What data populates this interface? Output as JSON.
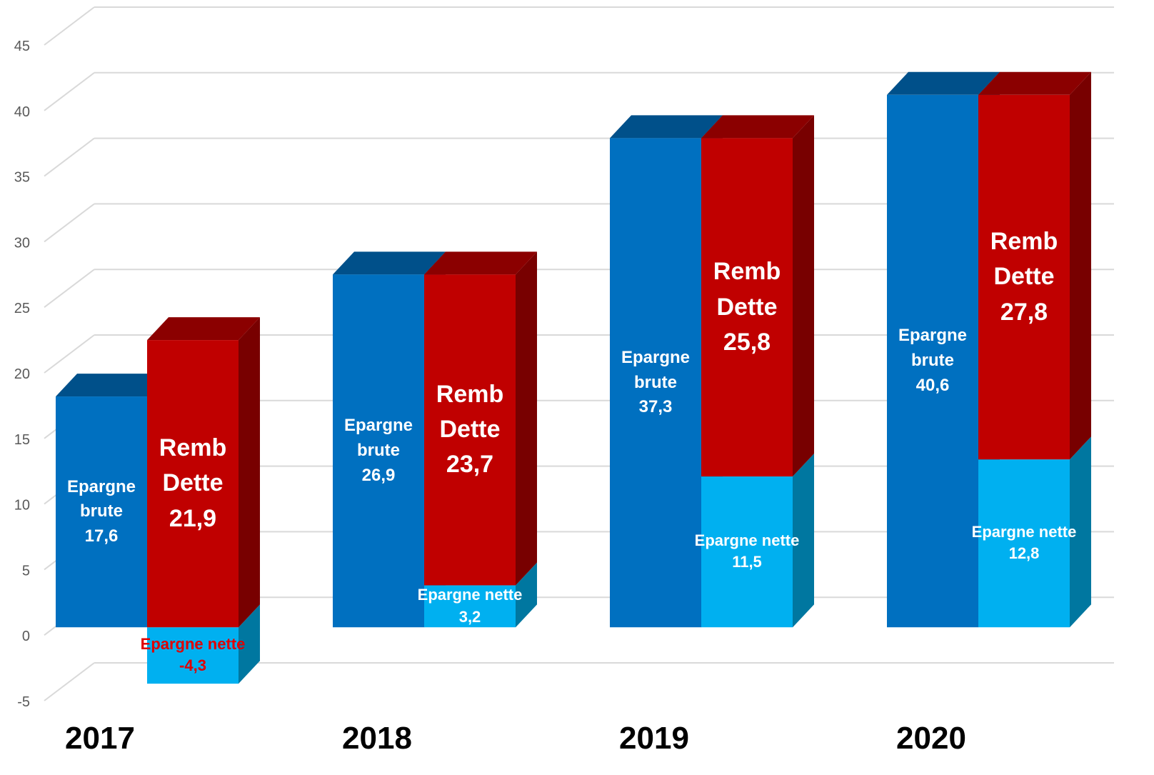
{
  "chart_data": {
    "type": "bar3d",
    "categories": [
      "2017",
      "2018",
      "2019",
      "2020"
    ],
    "series": [
      {
        "name": "Epargne brute",
        "color": "#0070c0",
        "top_color": "#00508a",
        "side_color": "#004a80",
        "stack": "a",
        "values": [
          17.6,
          26.9,
          37.3,
          40.6
        ],
        "value_labels": [
          "17,6",
          "26,9",
          "37,3",
          "40,6"
        ]
      },
      {
        "name": "Epargne nette",
        "color": "#00b0f0",
        "top_color": "#0090c8",
        "side_color": "#0077a0",
        "stack": "b",
        "values": [
          -4.3,
          3.2,
          11.5,
          12.8
        ],
        "value_labels": [
          "-4,3",
          "3,2",
          "11,5",
          "12,8"
        ]
      },
      {
        "name": "Remb Dette",
        "color": "#c00000",
        "top_color": "#8b0000",
        "side_color": "#780000",
        "stack": "b",
        "values": [
          21.9,
          23.7,
          25.8,
          27.8
        ],
        "value_labels": [
          "21,9",
          "23,7",
          "25,8",
          "27,8"
        ]
      }
    ],
    "ylim": [
      -5,
      45
    ],
    "yticks": [
      -5,
      0,
      5,
      10,
      15,
      20,
      25,
      30,
      35,
      40,
      45
    ],
    "grid": true
  }
}
